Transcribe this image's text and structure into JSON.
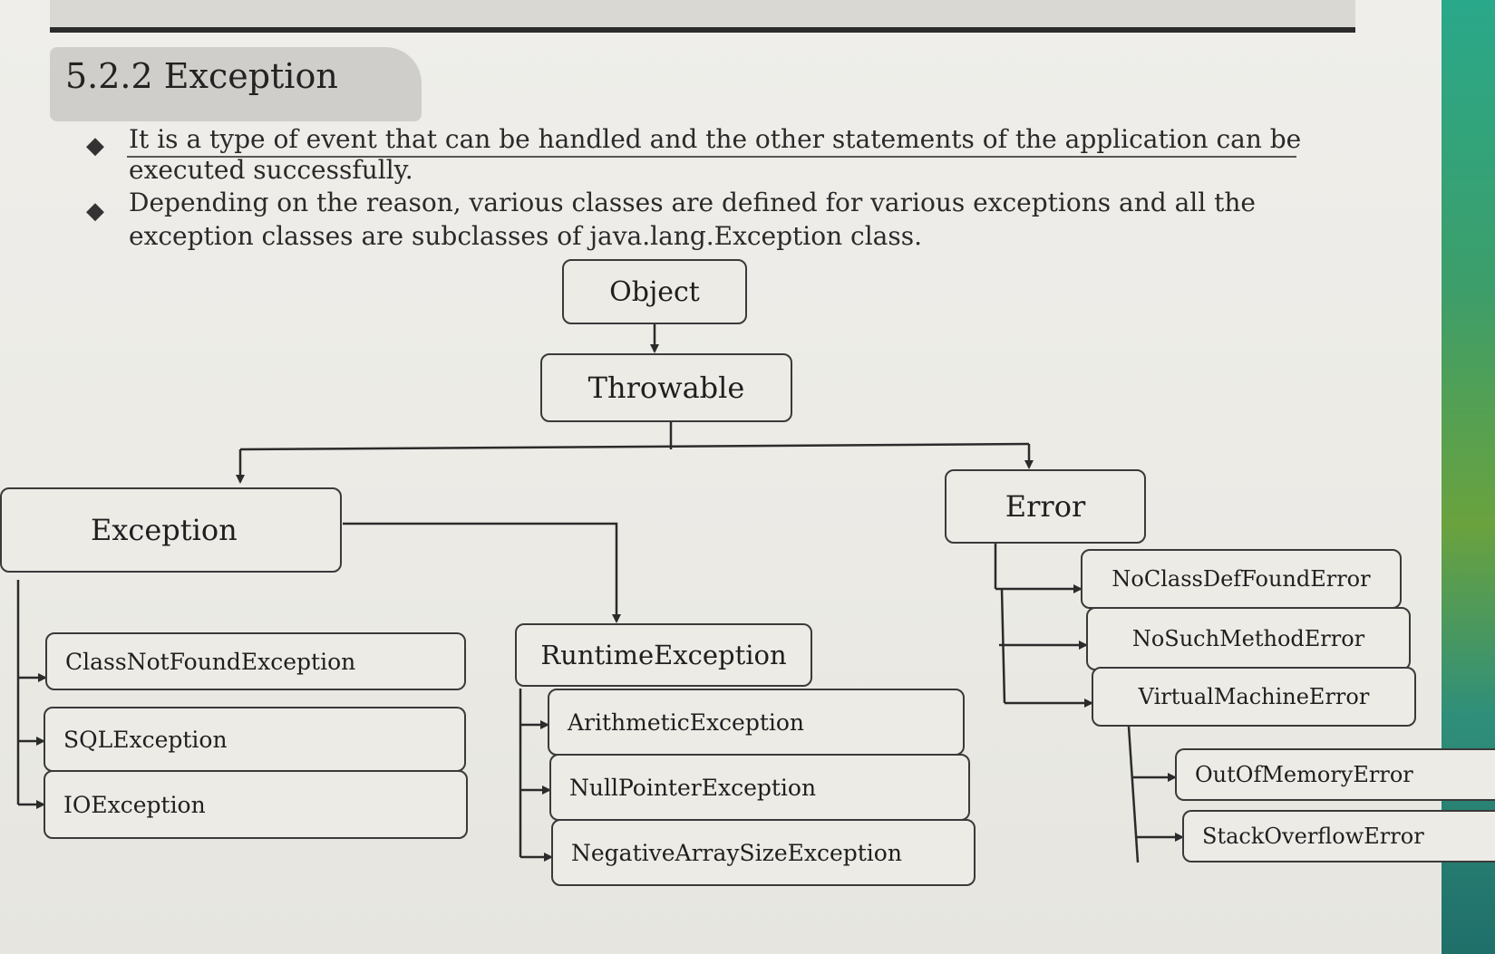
{
  "section": {
    "title": "5.2.2 Exception"
  },
  "bullets": [
    {
      "line1": "It is a type of event that can be handled and the other statements of the application can be",
      "line2": "executed successfully."
    },
    {
      "line1": "Depending on the reason, various classes are defined for various exceptions and all the",
      "line2": "exception classes are subclasses of java.lang.Exception class."
    }
  ],
  "diagram": {
    "object": "Object",
    "throwable": "Throwable",
    "exception": "Exception",
    "error": "Error",
    "class_not_found": "ClassNotFoundException",
    "sql": "SQLException",
    "io": "IOException",
    "runtime": "RuntimeException",
    "arithmetic": "ArithmeticException",
    "null_pointer": "NullPointerException",
    "negative_array": "NegativeArraySizeException",
    "no_class_def": "NoClassDefFoundError",
    "no_such_method": "NoSuchMethodError",
    "virtual_machine": "VirtualMachineError",
    "out_of_memory": "OutOfMemoryError",
    "stack_overflow": "StackOverflowError"
  }
}
